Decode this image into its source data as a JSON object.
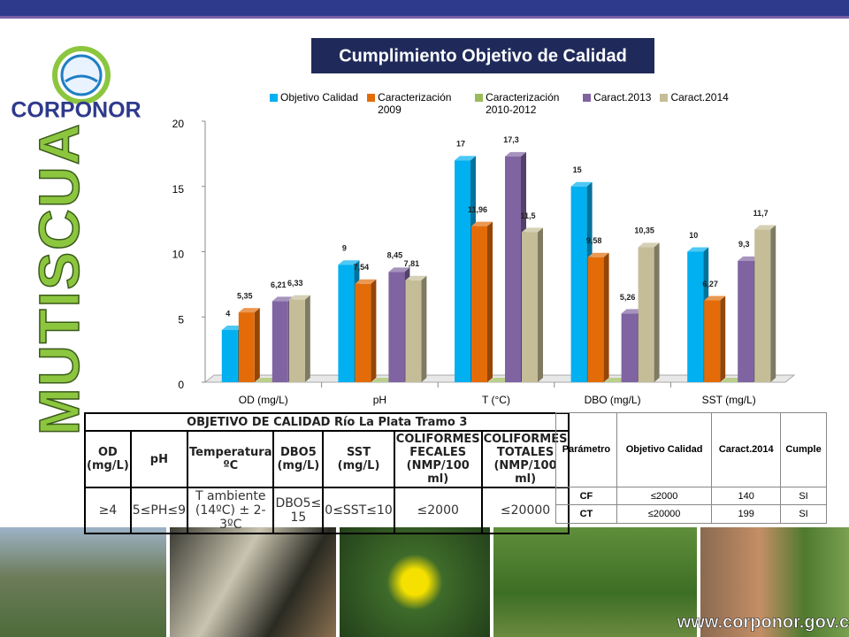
{
  "brand": "CORPONOR",
  "side_title": "MUTISCUA",
  "website": "www.corponor.gov.co",
  "chart_data": {
    "type": "bar",
    "title": "Cumplimiento Objetivo de Calidad",
    "categories": [
      "OD (mg/L)",
      "pH",
      "T (°C)",
      "DBO (mg/L)",
      "SST (mg/L)"
    ],
    "series": [
      {
        "name": "Objetivo Calidad",
        "color": "#00b0f0",
        "values": [
          4,
          9,
          17,
          15,
          10
        ],
        "value_labels": [
          "4",
          "9",
          "17",
          "15",
          "10"
        ]
      },
      {
        "name": "Caracterización 2009",
        "color": "#e36c09",
        "values": [
          5.35,
          7.54,
          11.96,
          9.58,
          6.27
        ],
        "value_labels": [
          "5,35",
          "7,54",
          "11,96",
          "9,58",
          "6,27"
        ]
      },
      {
        "name": "Caracterización 2010-2012",
        "color": "#9bbb59",
        "values": [
          0,
          0,
          0,
          0,
          0
        ]
      },
      {
        "name": "Caract.2013",
        "color": "#8064a2",
        "values": [
          6.21,
          8.45,
          17.3,
          5.26,
          9.3
        ],
        "value_labels": [
          "6,21",
          "8,45",
          "17,3",
          "5,26",
          "9,3"
        ]
      },
      {
        "name": "Caract.2014",
        "color": "#c4bd97",
        "values": [
          6.33,
          7.81,
          11.5,
          10.35,
          11.7
        ],
        "value_labels": [
          "6,33",
          "7,81",
          "11,5",
          "10,35",
          "11,7"
        ]
      }
    ],
    "ylim": [
      0,
      20
    ],
    "yticks": [
      0,
      5,
      10,
      15,
      20
    ],
    "legend": "top"
  },
  "left_table": {
    "title": "OBJETIVO DE CALIDAD Río La Plata Tramo 3",
    "headers": [
      "OD (mg/L)",
      "pH",
      "Temperatura ºC",
      "DBO5 (mg/L)",
      "SST (mg/L)",
      "COLIFORMES FECALES (NMP/100 ml)",
      "COLIFORMES TOTALES (NMP/100 ml)"
    ],
    "row": [
      "≥4",
      "5≤PH≤9",
      "T ambiente (14ºC) ± 2-3ºC",
      "DBO5≤ 15",
      "0≤SST≤10",
      "≤2000",
      "≤20000"
    ]
  },
  "right_table": {
    "headers": [
      "Parámetro",
      "Objetivo Calidad",
      "Caract.2014",
      "Cumple"
    ],
    "rows": [
      [
        "CF",
        "≤2000",
        "140",
        "SI"
      ],
      [
        "CT",
        "≤20000",
        "199",
        "SI"
      ]
    ]
  }
}
